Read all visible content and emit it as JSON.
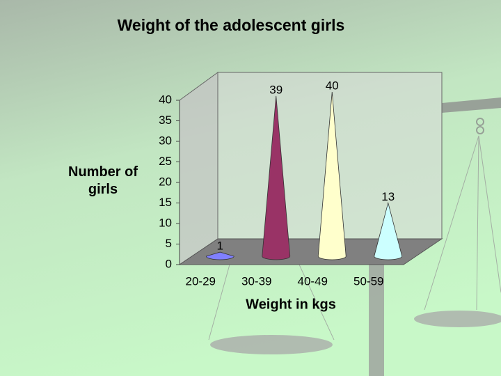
{
  "chart_data": {
    "type": "cone",
    "title": "Weight of the adolescent girls",
    "x_label": "Weight in kgs",
    "y_label": "Number of girls",
    "categories": [
      "20-29",
      "30-39",
      "40-49",
      "50-59"
    ],
    "values": [
      1,
      39,
      40,
      13
    ],
    "colors": [
      "#8080ff",
      "#993366",
      "#ffffcc",
      "#ccffff"
    ],
    "ylim": [
      0,
      40
    ],
    "yticks": [
      0,
      5,
      10,
      15,
      20,
      25,
      30,
      35,
      40
    ]
  }
}
